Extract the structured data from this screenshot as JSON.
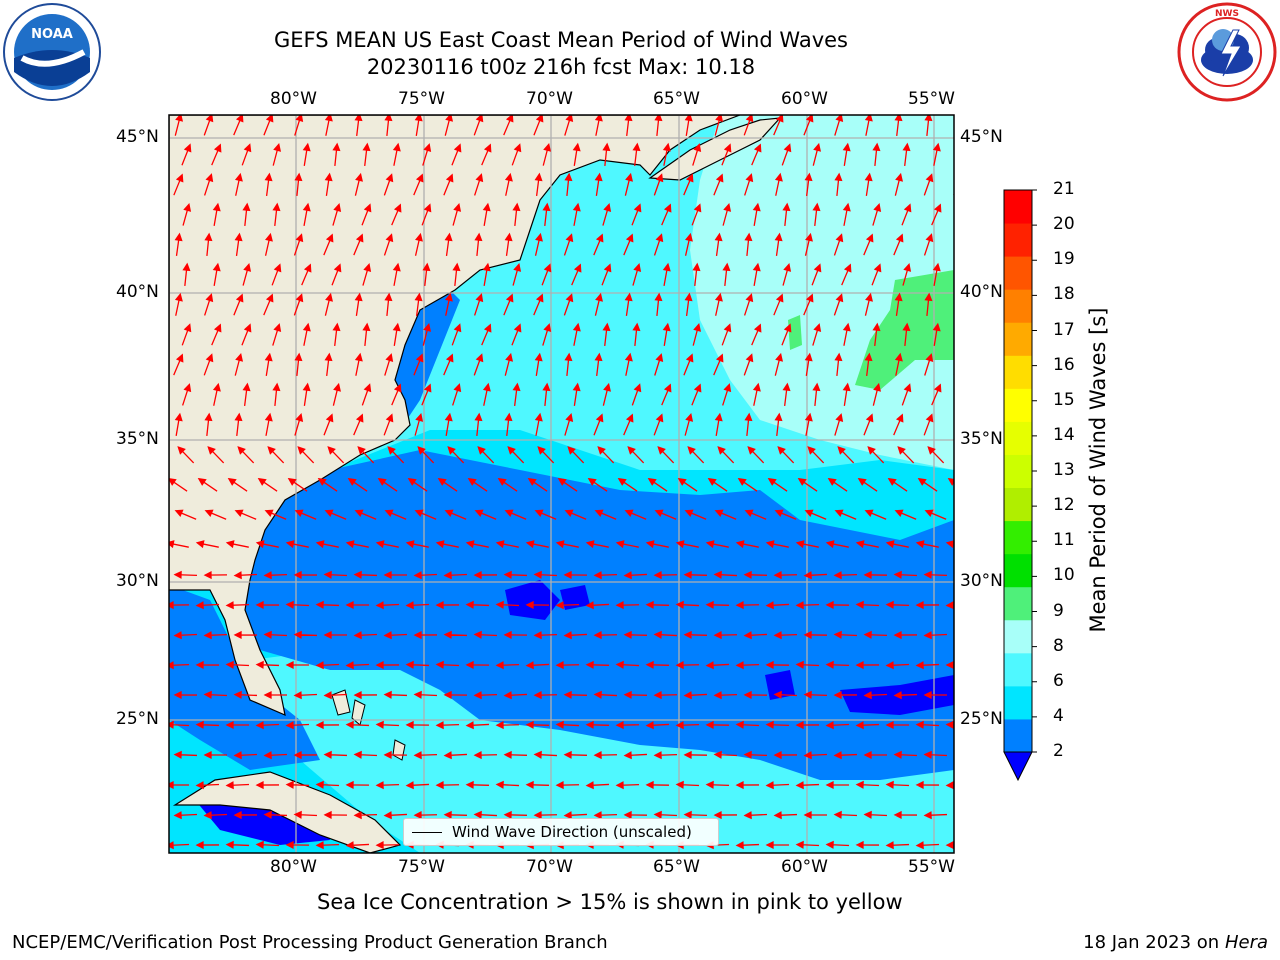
{
  "header": {
    "title_line1": "GEFS MEAN US East Coast Mean Period of Wind Waves",
    "title_line2": "20230116 t00z 216h fcst   Max: 10.18"
  },
  "logos": {
    "noaa": "NOAA",
    "nws": "NATIONAL WEATHER SERVICE"
  },
  "map": {
    "lon_labels": [
      "80°W",
      "75°W",
      "70°W",
      "65°W",
      "60°W",
      "55°W"
    ],
    "lat_labels": [
      "45°N",
      "40°N",
      "35°N",
      "30°N",
      "25°N"
    ],
    "lon_range": [
      "85°W",
      "54.3°W"
    ],
    "lat_range": [
      "20.5°N",
      "45.8°N"
    ],
    "land_color": "#efecdc",
    "ocean_colors": {
      "2-4": "#0080ff",
      "4-6": "#00e5ff",
      "6-8": "#4ff8ff",
      "8-9": "#a8fff9",
      "9-10": "#4ff07a",
      "below-2": "#0000ff"
    },
    "arrow_color": "#ff0000",
    "legend": "Wind Wave Direction (unscaled)"
  },
  "colorbar": {
    "label": "Mean Period of Wind Waves [s]",
    "ticks": [
      "21",
      "20",
      "19",
      "18",
      "17",
      "16",
      "15",
      "14",
      "13",
      "12",
      "11",
      "10",
      "9",
      "8",
      "6",
      "4",
      "2"
    ],
    "colors": [
      "#0080ff",
      "#00e5ff",
      "#4ff8ff",
      "#a8fff9",
      "#4ff07a",
      "#00e000",
      "#33ee00",
      "#b0ee00",
      "#ccff00",
      "#e6ff00",
      "#ffff00",
      "#ffdd00",
      "#ffaa00",
      "#ff8000",
      "#ff5500",
      "#ff2200",
      "#ff0000"
    ],
    "extend_color": "#0000ff"
  },
  "notes": {
    "ice": "Sea Ice Concentration > 15% is shown in pink to yellow"
  },
  "footer": {
    "left": "NCEP/EMC/Verification Post Processing Product Generation Branch",
    "right_date": "18 Jan 2023 on ",
    "right_host": "Hera"
  }
}
